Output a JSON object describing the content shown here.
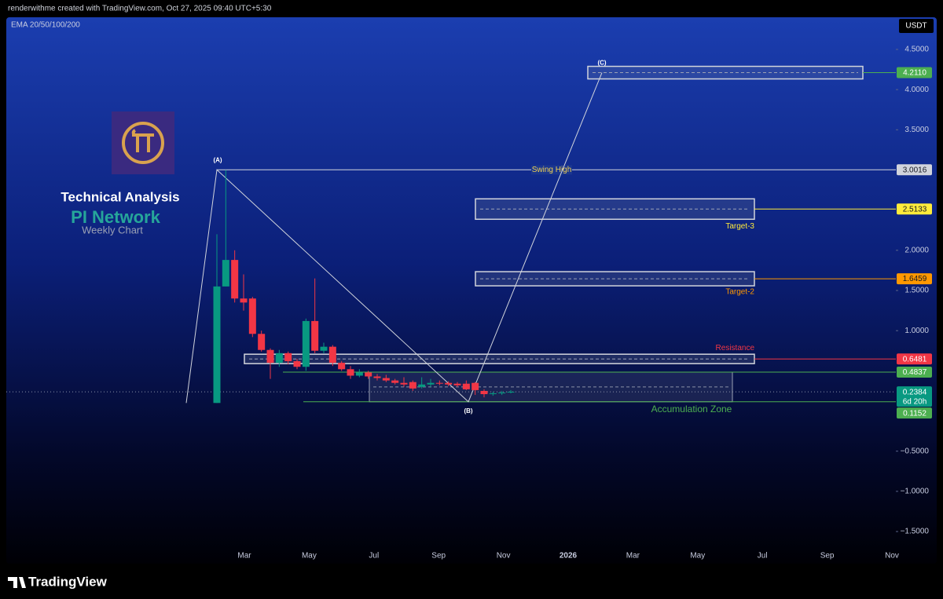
{
  "header": {
    "credit": "renderwithme created with TradingView.com, Oct 27, 2025 09:40 UTC+5:30",
    "indicator": "EMA 20/50/100/200",
    "currency": "USDT"
  },
  "footer": {
    "brand": "TradingView"
  },
  "chart_data": {
    "type": "candlestick",
    "title": "Technical Analysis",
    "subtitle": "PI Network",
    "annotation": "Weekly Chart",
    "up_color": "#089981",
    "down_color": "#f23645",
    "open": [
      0.1,
      1.55,
      1.88,
      1.4,
      1.4,
      0.96,
      0.76,
      0.6,
      0.72,
      0.62,
      0.55,
      1.12,
      0.75,
      0.8,
      0.6,
      0.52,
      0.44,
      0.48,
      0.43,
      0.41,
      0.38,
      0.35,
      0.36,
      0.3,
      0.33,
      0.35,
      0.35,
      0.34,
      0.34,
      0.35,
      0.25,
      0.21,
      0.22,
      0.23
    ],
    "high": [
      2.2,
      3.0,
      2.0,
      1.7,
      1.42,
      1.0,
      0.78,
      0.76,
      0.74,
      0.65,
      1.15,
      1.65,
      0.85,
      0.82,
      0.62,
      0.56,
      0.52,
      0.5,
      0.46,
      0.45,
      0.4,
      0.42,
      0.38,
      0.42,
      0.4,
      0.38,
      0.37,
      0.36,
      0.38,
      0.36,
      0.27,
      0.24,
      0.25,
      0.26
    ],
    "low": [
      0.1,
      1.55,
      1.35,
      1.25,
      0.92,
      0.74,
      0.4,
      0.55,
      0.58,
      0.52,
      0.5,
      0.72,
      0.72,
      0.56,
      0.5,
      0.4,
      0.42,
      0.4,
      0.38,
      0.36,
      0.33,
      0.3,
      0.25,
      0.28,
      0.3,
      0.32,
      0.31,
      0.3,
      0.26,
      0.2,
      0.17,
      0.19,
      0.2,
      0.22
    ],
    "close": [
      1.55,
      1.88,
      1.4,
      1.35,
      0.96,
      0.76,
      0.6,
      0.72,
      0.62,
      0.55,
      1.12,
      0.75,
      0.8,
      0.6,
      0.52,
      0.44,
      0.48,
      0.43,
      0.41,
      0.38,
      0.35,
      0.33,
      0.28,
      0.33,
      0.35,
      0.34,
      0.33,
      0.32,
      0.27,
      0.26,
      0.21,
      0.22,
      0.23,
      0.24
    ],
    "x_labels": [
      "Mar",
      "May",
      "Jul",
      "Sep",
      "Nov",
      "2026",
      "Mar",
      "May",
      "Jul",
      "Sep",
      "Nov"
    ],
    "ylim": [
      -1.9,
      4.9
    ],
    "yticks": [
      {
        "value": 4.5,
        "label": "4.5000"
      },
      {
        "value": 4,
        "label": "4.0000"
      },
      {
        "value": 3.5,
        "label": "3.5000"
      },
      {
        "value": 2,
        "label": "2.0000"
      },
      {
        "value": 1.5,
        "label": "1.5000"
      },
      {
        "value": 1,
        "label": "1.0000"
      },
      {
        "value": -0.5,
        "label": "−0.5000"
      },
      {
        "value": -1,
        "label": "−1.0000"
      },
      {
        "value": -1.5,
        "label": "−1.5000"
      }
    ],
    "levels": [
      {
        "value": 4.211,
        "label": "4.2110",
        "color": "#4caf50"
      },
      {
        "name": "Swing High",
        "value": 3.0016,
        "color": "#d1d4dc"
      },
      {
        "name": "Target-3",
        "value": 2.5133,
        "color": "#ffeb3b"
      },
      {
        "name": "Target-2",
        "value": 1.6459,
        "color": "#ff9800"
      },
      {
        "name": "Resistance",
        "value": 0.6481,
        "color": "#f23645"
      },
      {
        "value": 0.4837,
        "color": "#4caf50"
      },
      {
        "name": "Accumulation Zone",
        "value": 0.1152,
        "color": "#4caf50"
      }
    ],
    "waves": [
      {
        "label": "(A)",
        "value": 3.0016
      },
      {
        "label": "(B)",
        "value": 0.1152
      },
      {
        "label": "(C)",
        "value": 4.211
      }
    ],
    "last_price": {
      "value": 0.2384,
      "countdown": "6d 20h",
      "color": "#089981"
    }
  }
}
